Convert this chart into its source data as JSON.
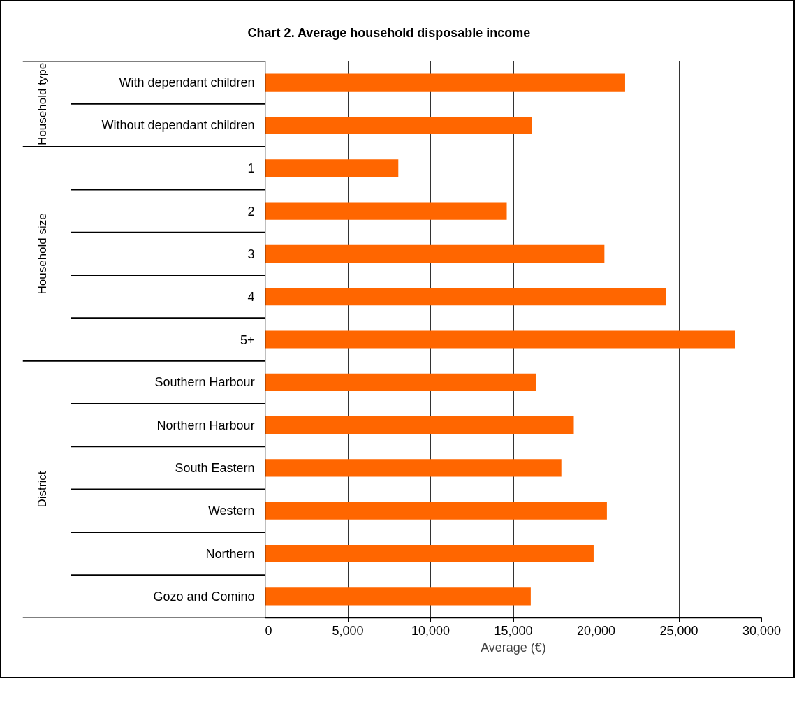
{
  "chart_data": {
    "type": "bar",
    "orientation": "horizontal",
    "title": "Chart 2.  Average household disposable income",
    "xlabel": "Average (€)",
    "categories": [
      "With dependant children",
      "Without dependant children",
      "1",
      "2",
      "3",
      "4",
      "5+",
      "Southern Harbour",
      "Northern Harbour",
      "South Eastern",
      "Western",
      "Northern",
      "Gozo and Comino"
    ],
    "values": [
      21750,
      16100,
      8050,
      14600,
      20500,
      24200,
      28400,
      16350,
      18650,
      17900,
      20650,
      19850,
      16050
    ],
    "color": "#ff6600",
    "xlim": [
      0,
      30000
    ],
    "xticks": [
      0,
      {
        "value": 5000,
        "label": "5,000"
      },
      {
        "value": 10000,
        "label": "10,000"
      },
      {
        "value": 15000,
        "label": "15,000"
      },
      {
        "value": 20000,
        "label": "20,000"
      },
      {
        "value": 25000,
        "label": "25,000"
      },
      {
        "value": 30000,
        "label": "30,000"
      }
    ],
    "grid": "x",
    "annotations": [
      "Household type",
      "Household size",
      "District"
    ]
  }
}
